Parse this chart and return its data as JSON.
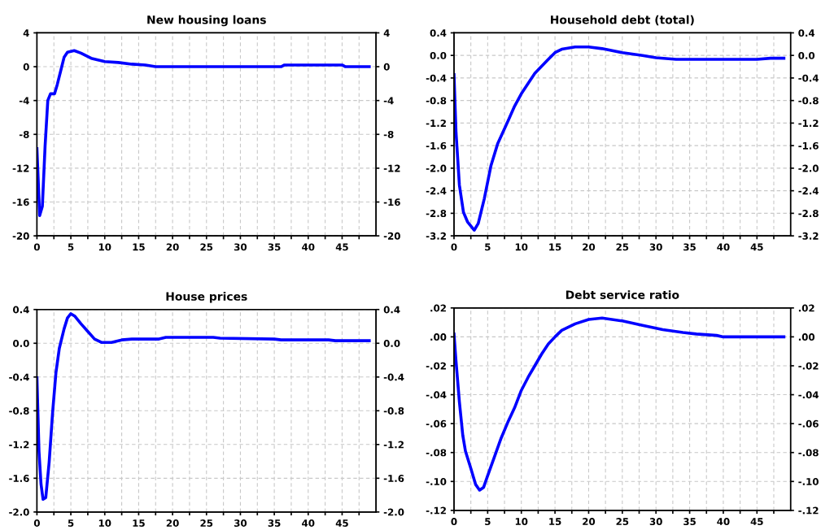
{
  "chart_data": [
    {
      "type": "line",
      "title": "New housing loans",
      "xlim": [
        0,
        50
      ],
      "xticks": [
        0,
        {
          "value": 2.5,
          "label": null
        },
        5,
        {
          "value": 7.5,
          "label": null
        },
        10,
        {
          "value": 12.5,
          "label": null
        },
        15,
        {
          "value": 17.5,
          "label": null
        },
        20,
        {
          "value": 22.5,
          "label": null
        },
        25,
        {
          "value": 27.5,
          "label": null
        },
        30,
        {
          "value": 32.5,
          "label": null
        },
        35,
        {
          "value": 37.5,
          "label": null
        },
        40,
        {
          "value": 42.5,
          "label": null
        },
        45,
        {
          "value": 47.5,
          "label": null
        }
      ],
      "ylim": [
        -20,
        4
      ],
      "yticks": [
        -20,
        -16,
        -12,
        -8,
        -4,
        0,
        4
      ],
      "y2lim": [
        -20,
        4
      ],
      "y2ticks": [
        -20,
        -16,
        -12,
        -8,
        -4,
        0,
        4
      ],
      "grid": true,
      "series": [
        {
          "color": "#0000ff",
          "x": [
            0,
            0.4,
            0.8,
            1.2,
            1.6,
            2,
            2.6,
            3,
            3.5,
            4,
            4.5,
            5.5,
            6.5,
            8,
            10,
            12,
            14,
            16,
            17.5,
            36,
            36.5,
            45,
            45.5,
            49
          ],
          "values": [
            -9.7,
            -17.6,
            -16.5,
            -9.4,
            -4,
            -3.2,
            -3.2,
            -2.1,
            -0.5,
            1.1,
            1.7,
            1.9,
            1.6,
            1.0,
            0.6,
            0.5,
            0.3,
            0.2,
            0,
            0,
            0.2,
            0.2,
            0,
            0
          ]
        }
      ]
    },
    {
      "type": "line",
      "title": "Household debt (total)",
      "xlim": [
        0,
        50
      ],
      "xticks": [
        0,
        {
          "value": 2.5,
          "label": null
        },
        5,
        {
          "value": 7.5,
          "label": null
        },
        10,
        {
          "value": 12.5,
          "label": null
        },
        15,
        {
          "value": 17.5,
          "label": null
        },
        20,
        {
          "value": 22.5,
          "label": null
        },
        25,
        {
          "value": 27.5,
          "label": null
        },
        30,
        {
          "value": 32.5,
          "label": null
        },
        35,
        {
          "value": 37.5,
          "label": null
        },
        40,
        {
          "value": 42.5,
          "label": null
        },
        45,
        {
          "value": 47.5,
          "label": null
        }
      ],
      "ylim": [
        -3.2,
        0.4
      ],
      "yticks": [
        -3.2,
        -2.8,
        -2.4,
        {
          "value": -2,
          "label": "-2.0"
        },
        -1.6,
        -1.2,
        -0.8,
        -0.4,
        {
          "value": 0,
          "label": "0.0"
        },
        0.4
      ],
      "y2lim": [
        -3.2,
        0.4
      ],
      "y2ticks": [
        -3.2,
        -2.8,
        -2.4,
        {
          "value": -2,
          "label": "-2.0"
        },
        -1.6,
        -1.2,
        -0.8,
        -0.4,
        {
          "value": 0,
          "label": "0.0"
        },
        0.4
      ],
      "grid": true,
      "series": [
        {
          "color": "#0000ff",
          "x": [
            0,
            0.3,
            0.8,
            1.4,
            2,
            3,
            3.6,
            4.5,
            5.5,
            6.5,
            8,
            9,
            10,
            12,
            14,
            15,
            16,
            18,
            20,
            22,
            25,
            28,
            30,
            33,
            40,
            45,
            47,
            49
          ],
          "values": [
            -0.34,
            -1.37,
            -2.3,
            -2.78,
            -2.95,
            -3.1,
            -2.98,
            -2.54,
            -1.95,
            -1.56,
            -1.17,
            -0.9,
            -0.68,
            -0.32,
            -0.07,
            0.05,
            0.11,
            0.15,
            0.15,
            0.12,
            0.05,
            0.0,
            -0.04,
            -0.07,
            -0.07,
            -0.07,
            -0.05,
            -0.05
          ]
        }
      ]
    },
    {
      "type": "line",
      "title": "House prices",
      "xlim": [
        0,
        50
      ],
      "xticks": [
        0,
        {
          "value": 2.5,
          "label": null
        },
        5,
        {
          "value": 7.5,
          "label": null
        },
        10,
        {
          "value": 12.5,
          "label": null
        },
        15,
        {
          "value": 17.5,
          "label": null
        },
        20,
        {
          "value": 22.5,
          "label": null
        },
        25,
        {
          "value": 27.5,
          "label": null
        },
        30,
        {
          "value": 32.5,
          "label": null
        },
        35,
        {
          "value": 37.5,
          "label": null
        },
        40,
        {
          "value": 42.5,
          "label": null
        },
        45,
        {
          "value": 47.5,
          "label": null
        }
      ],
      "ylim": [
        -2,
        0.4
      ],
      "yticks": [
        {
          "value": -2,
          "label": "-2.0"
        },
        -1.6,
        -1.2,
        -0.8,
        -0.4,
        {
          "value": 0,
          "label": "0.0"
        },
        0.4
      ],
      "y2lim": [
        -2,
        0.4
      ],
      "y2ticks": [
        {
          "value": -2,
          "label": "-2.0"
        },
        -1.6,
        -1.2,
        -0.8,
        -0.4,
        {
          "value": 0,
          "label": "0.0"
        },
        0.4
      ],
      "grid": true,
      "series": [
        {
          "color": "#0000ff",
          "x": [
            0,
            0.3,
            0.6,
            0.9,
            1.3,
            1.8,
            2.3,
            2.8,
            3.3,
            4,
            4.5,
            5,
            5.6,
            6.5,
            7.5,
            8.5,
            9.5,
            11,
            12.5,
            14,
            18,
            19,
            26,
            27,
            35,
            36,
            43,
            44,
            49
          ],
          "values": [
            -0.41,
            -1.28,
            -1.67,
            -1.85,
            -1.83,
            -1.41,
            -0.83,
            -0.35,
            -0.06,
            0.17,
            0.3,
            0.35,
            0.32,
            0.23,
            0.14,
            0.05,
            0.01,
            0.01,
            0.04,
            0.05,
            0.05,
            0.07,
            0.07,
            0.06,
            0.05,
            0.04,
            0.04,
            0.03,
            0.03
          ]
        }
      ]
    },
    {
      "type": "line",
      "title": "Debt service ratio",
      "xlim": [
        0,
        50
      ],
      "xticks": [
        0,
        {
          "value": 2.5,
          "label": null
        },
        5,
        {
          "value": 7.5,
          "label": null
        },
        10,
        {
          "value": 12.5,
          "label": null
        },
        15,
        {
          "value": 17.5,
          "label": null
        },
        20,
        {
          "value": 22.5,
          "label": null
        },
        25,
        {
          "value": 27.5,
          "label": null
        },
        30,
        {
          "value": 32.5,
          "label": null
        },
        35,
        {
          "value": 37.5,
          "label": null
        },
        40,
        {
          "value": 42.5,
          "label": null
        },
        45,
        {
          "value": 47.5,
          "label": null
        }
      ],
      "ylim": [
        -0.12,
        0.02
      ],
      "yticks": [
        {
          "value": -0.12,
          "label": "-.12"
        },
        {
          "value": -0.1,
          "label": "-.10"
        },
        {
          "value": -0.08,
          "label": "-.08"
        },
        {
          "value": -0.06,
          "label": "-.06"
        },
        {
          "value": -0.04,
          "label": "-.04"
        },
        {
          "value": -0.02,
          "label": "-.02"
        },
        {
          "value": 0,
          "label": ".00"
        },
        {
          "value": 0.02,
          "label": ".02"
        }
      ],
      "y2lim": [
        -0.12,
        0.02
      ],
      "y2ticks": [
        {
          "value": -0.12,
          "label": "-.12"
        },
        {
          "value": -0.1,
          "label": "-.10"
        },
        {
          "value": -0.08,
          "label": "-.08"
        },
        {
          "value": -0.06,
          "label": "-.06"
        },
        {
          "value": -0.04,
          "label": "-.04"
        },
        {
          "value": -0.02,
          "label": "-.02"
        },
        {
          "value": 0,
          "label": ".00"
        },
        {
          "value": 0.02,
          "label": ".02"
        }
      ],
      "grid": true,
      "series": [
        {
          "color": "#0000ff",
          "x": [
            0,
            0.3,
            0.8,
            1.3,
            1.7,
            2.5,
            3.2,
            3.8,
            4.4,
            5,
            6,
            7,
            8,
            9,
            10,
            11,
            12,
            13,
            14,
            15,
            16,
            18,
            20,
            22,
            25,
            28,
            31,
            34,
            36,
            39,
            40,
            49
          ],
          "values": [
            0.002,
            -0.017,
            -0.045,
            -0.068,
            -0.079,
            -0.091,
            -0.102,
            -0.106,
            -0.104,
            -0.096,
            -0.083,
            -0.07,
            -0.059,
            -0.049,
            -0.037,
            -0.028,
            -0.02,
            -0.012,
            -0.005,
            0.0,
            0.0045,
            0.009,
            0.012,
            0.013,
            0.011,
            0.008,
            0.005,
            0.003,
            0.002,
            0.001,
            0.0,
            0.0
          ]
        }
      ]
    }
  ]
}
